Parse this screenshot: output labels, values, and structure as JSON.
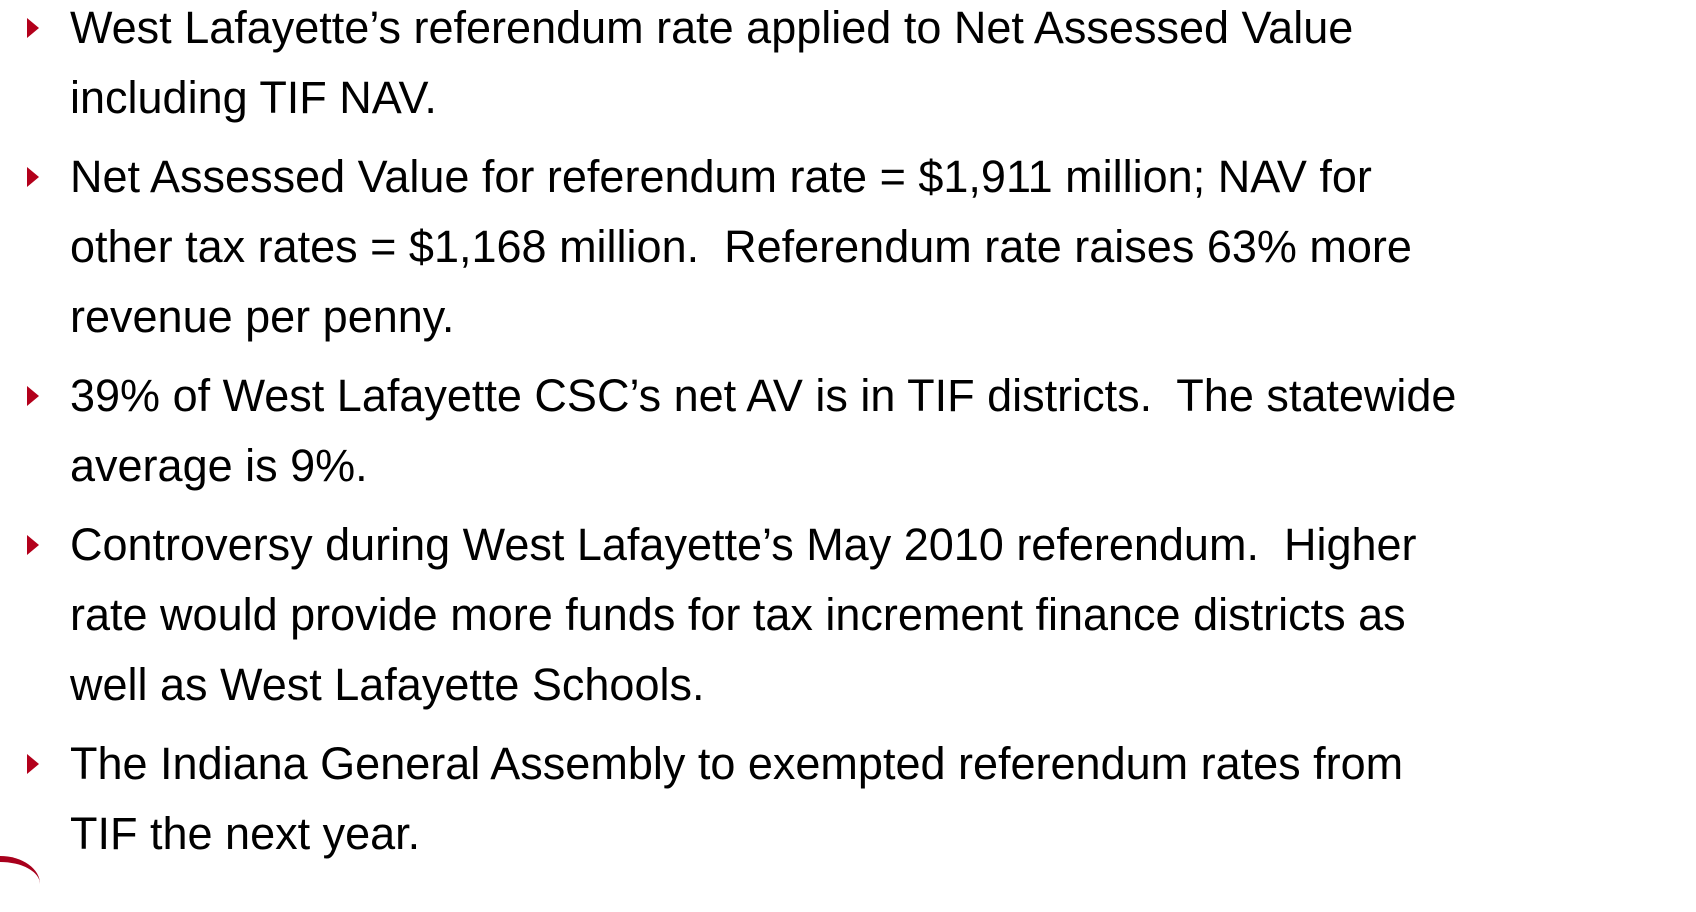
{
  "bullets": [
    {
      "lines": [
        "West Lafayette’s referendum rate applied to Net Assessed Value",
        "including TIF NAV."
      ]
    },
    {
      "lines": [
        "Net Assessed Value for referendum rate = $1,911 million; NAV for",
        "other tax rates = $1,168 million.  Referendum rate raises 63% more",
        "revenue per penny."
      ]
    },
    {
      "lines": [
        "39% of West Lafayette CSC’s net AV is in TIF districts.  The statewide",
        "average is 9%."
      ]
    },
    {
      "lines": [
        "Controversy during West Lafayette’s May 2010 referendum.  Higher",
        "rate would provide more funds for tax increment finance districts as",
        "well as West Lafayette Schools."
      ]
    },
    {
      "lines": [
        "The Indiana General Assembly to exempted referendum rates from",
        "TIF the next year."
      ]
    }
  ]
}
